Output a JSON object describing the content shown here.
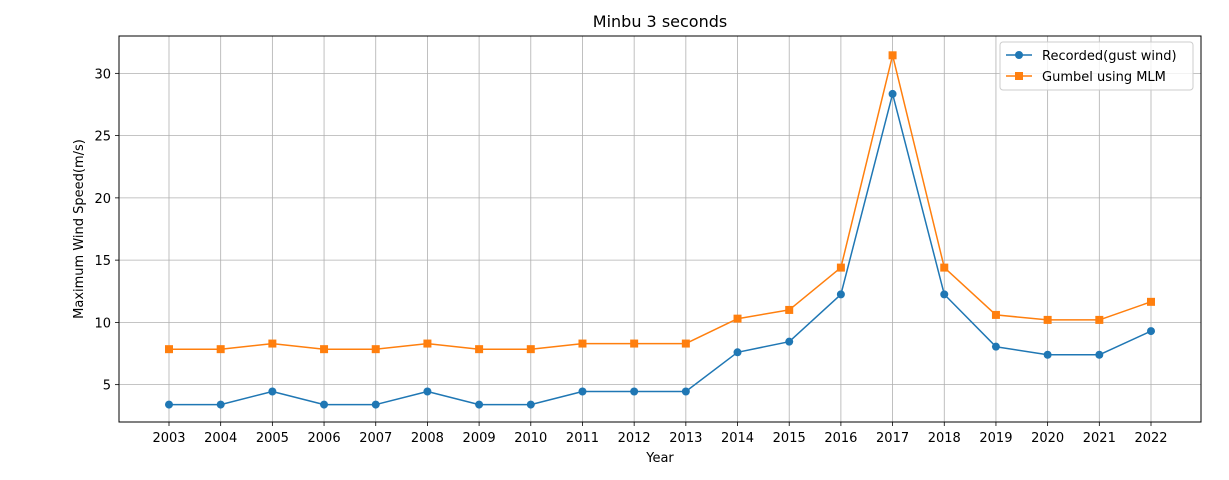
{
  "chart_data": {
    "type": "line",
    "title": "Minbu 3 seconds",
    "xlabel": "Year",
    "ylabel": "Maximum Wind Speed(m/s)",
    "categories": [
      "2003",
      "2004",
      "2005",
      "2006",
      "2007",
      "2008",
      "2009",
      "2010",
      "2011",
      "2012",
      "2013",
      "2014",
      "2015",
      "2016",
      "2017",
      "2018",
      "2019",
      "2020",
      "2021",
      "2022"
    ],
    "ylim": [
      2.0,
      33.0
    ],
    "yticks": [
      5,
      10,
      15,
      20,
      25,
      30
    ],
    "grid": true,
    "legend_position": "top-right",
    "series": [
      {
        "name": "Recorded(gust wind)",
        "color": "#1f77b4",
        "marker": "circle",
        "values": [
          3.4,
          3.4,
          4.45,
          3.4,
          3.4,
          4.45,
          3.4,
          3.4,
          4.45,
          4.45,
          4.45,
          7.6,
          8.45,
          12.25,
          28.35,
          12.25,
          8.05,
          7.4,
          7.4,
          9.3
        ]
      },
      {
        "name": "Gumbel using MLM",
        "color": "#ff7f0e",
        "marker": "square",
        "values": [
          7.85,
          7.85,
          8.3,
          7.85,
          7.85,
          8.3,
          7.85,
          7.85,
          8.3,
          8.3,
          8.3,
          10.3,
          11.0,
          14.4,
          31.45,
          14.4,
          10.6,
          10.2,
          10.2,
          11.65
        ]
      }
    ]
  }
}
